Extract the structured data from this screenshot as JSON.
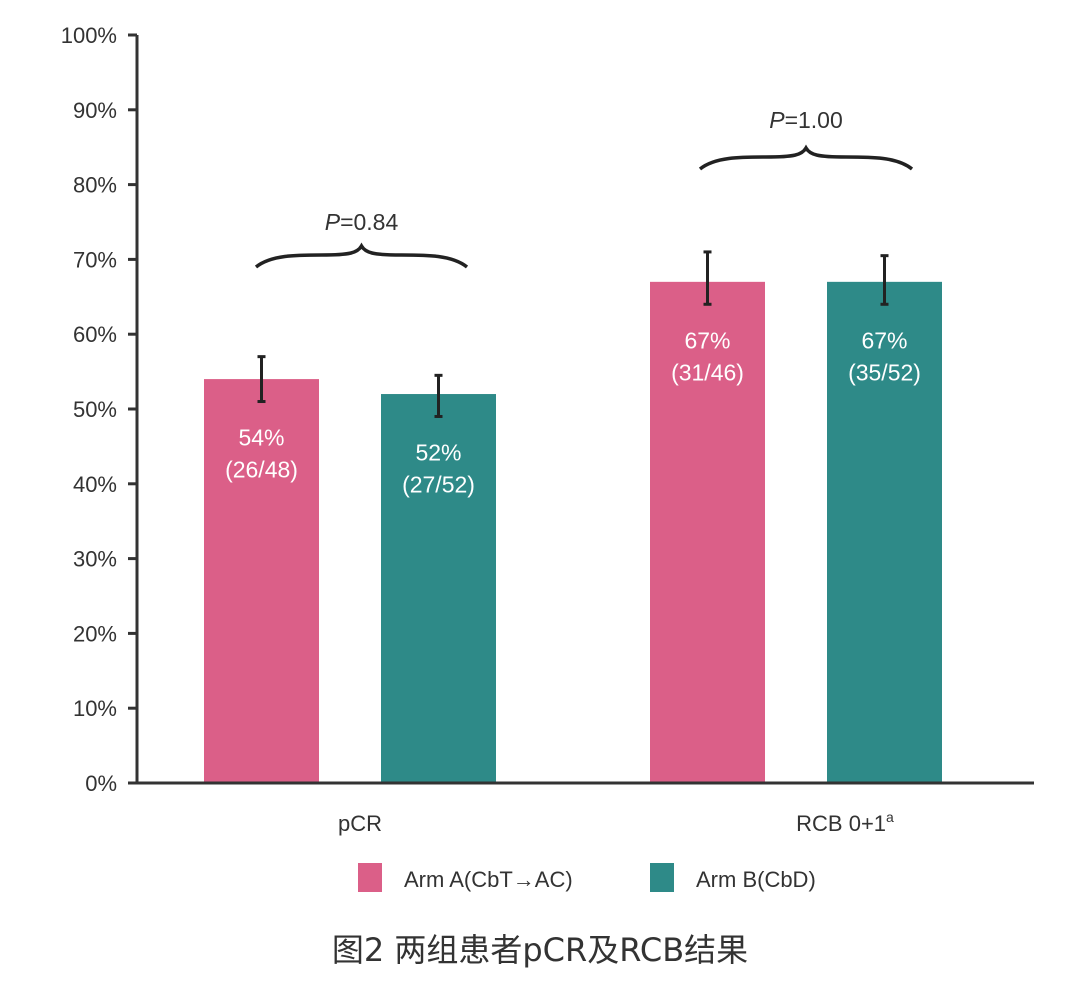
{
  "chart_data": {
    "type": "bar",
    "title": "",
    "xlabel": "",
    "ylabel": "",
    "ylim": [
      0,
      100
    ],
    "y_ticks": [
      "0%",
      "10%",
      "20%",
      "30%",
      "40%",
      "50%",
      "60%",
      "70%",
      "80%",
      "90%",
      "100%"
    ],
    "categories": [
      "pCR",
      "RCB 0+1"
    ],
    "category_superscripts": [
      "",
      "a"
    ],
    "series": [
      {
        "name": "Arm A(CbT→AC)",
        "color": "#DB5F88",
        "values": [
          54,
          67
        ],
        "labels": [
          "54%",
          "67%"
        ],
        "counts": [
          "(26/48)",
          "(31/46)"
        ],
        "error_low": [
          51,
          64
        ],
        "error_high": [
          57,
          71
        ]
      },
      {
        "name": "Arm B(CbD)",
        "color": "#2E8A88",
        "values": [
          52,
          67
        ],
        "labels": [
          "52%",
          "67%"
        ],
        "counts": [
          "(27/52)",
          "(35/52)"
        ],
        "error_low": [
          49,
          64
        ],
        "error_high": [
          54.5,
          70.5
        ]
      }
    ],
    "annotations": [
      {
        "category": "pCR",
        "text_italic": "P",
        "text": "=0.84"
      },
      {
        "category": "RCB 0+1",
        "text_italic": "P",
        "text": "=1.00"
      }
    ],
    "grid": false,
    "legend_position": "bottom"
  },
  "caption": "图2 两组患者pCR及RCB结果"
}
